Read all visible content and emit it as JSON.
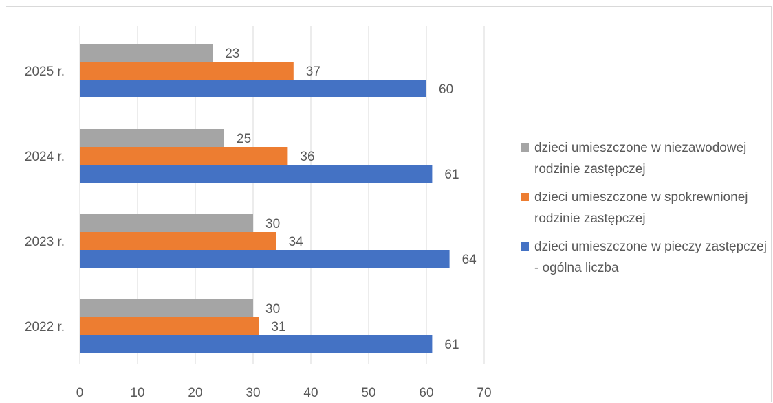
{
  "chart_data": {
    "type": "bar",
    "orientation": "horizontal",
    "categories": [
      "2025 r.",
      "2024 r.",
      "2023 r.",
      "2022 r."
    ],
    "series": [
      {
        "name": "dzieci umieszczone w niezawodowej rodzinie zastępczej",
        "color": "#a5a5a5",
        "values": [
          23,
          25,
          30,
          30
        ]
      },
      {
        "name": "dzieci umieszczone w spokrewnionej rodzinie zastępczej",
        "color": "#ed7d31",
        "values": [
          37,
          36,
          34,
          31
        ]
      },
      {
        "name": "dzieci umieszczone w pieczy zastępczej - ogólna liczba",
        "color": "#4472c4",
        "values": [
          60,
          61,
          64,
          61
        ]
      }
    ],
    "xlim": [
      0,
      70
    ],
    "xticks": [
      0,
      10,
      20,
      30,
      40,
      50,
      60,
      70
    ],
    "grid": "vertical",
    "legend": "right",
    "data_labels": true
  }
}
